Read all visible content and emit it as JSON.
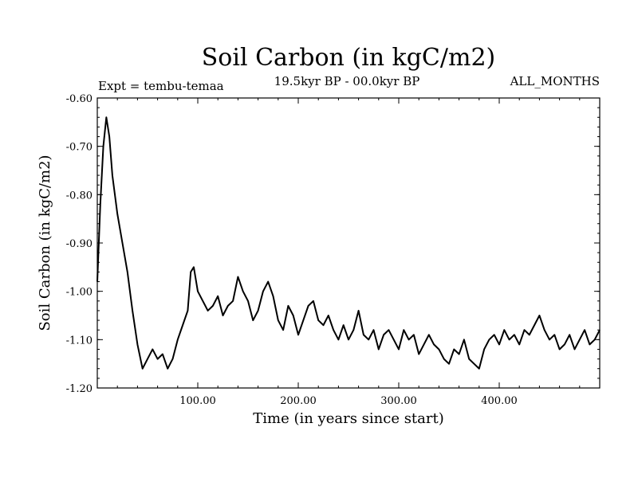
{
  "chart_data": {
    "type": "line",
    "title": "Soil Carbon (in kgC/m2)",
    "left_note": "Expt = tembu-temaa",
    "center_note": "19.5kyr BP - 00.0kyr BP",
    "right_note": "ALL_MONTHS",
    "xlabel": "Time (in years since start)",
    "ylabel": "Soil Carbon (in kgC/m2)",
    "xlim": [
      0,
      500
    ],
    "ylim": [
      -1.2,
      -0.6
    ],
    "xticks": [
      100,
      200,
      300,
      400
    ],
    "xtick_labels": [
      "100.00",
      "200.00",
      "300.00",
      "400.00"
    ],
    "yticks": [
      -0.6,
      -0.7,
      -0.8,
      -0.9,
      -1.0,
      -1.1,
      -1.2
    ],
    "ytick_labels": [
      "-0.60",
      "-0.70",
      "-0.80",
      "-0.90",
      "-1.00",
      "-1.10",
      "-1.20"
    ],
    "series": [
      {
        "name": "Soil Carbon",
        "x": [
          0,
          3,
          6,
          9,
          12,
          15,
          20,
          25,
          30,
          35,
          40,
          45,
          50,
          55,
          60,
          65,
          70,
          75,
          80,
          85,
          90,
          93,
          96,
          100,
          105,
          110,
          115,
          120,
          125,
          130,
          135,
          140,
          145,
          150,
          155,
          160,
          165,
          170,
          175,
          180,
          185,
          190,
          195,
          200,
          205,
          210,
          215,
          220,
          225,
          230,
          235,
          240,
          245,
          250,
          255,
          260,
          265,
          270,
          275,
          280,
          285,
          290,
          295,
          300,
          305,
          310,
          315,
          320,
          325,
          330,
          335,
          340,
          345,
          350,
          355,
          360,
          365,
          370,
          375,
          380,
          385,
          390,
          395,
          400,
          405,
          410,
          415,
          420,
          425,
          430,
          435,
          440,
          445,
          450,
          455,
          460,
          465,
          470,
          475,
          480,
          485,
          490,
          495,
          500
        ],
        "y": [
          -0.98,
          -0.82,
          -0.7,
          -0.64,
          -0.68,
          -0.76,
          -0.84,
          -0.9,
          -0.96,
          -1.04,
          -1.11,
          -1.16,
          -1.14,
          -1.12,
          -1.14,
          -1.13,
          -1.16,
          -1.14,
          -1.1,
          -1.07,
          -1.04,
          -0.96,
          -0.95,
          -1.0,
          -1.02,
          -1.04,
          -1.03,
          -1.01,
          -1.05,
          -1.03,
          -1.02,
          -0.97,
          -1.0,
          -1.02,
          -1.06,
          -1.04,
          -1.0,
          -0.98,
          -1.01,
          -1.06,
          -1.08,
          -1.03,
          -1.05,
          -1.09,
          -1.06,
          -1.03,
          -1.02,
          -1.06,
          -1.07,
          -1.05,
          -1.08,
          -1.1,
          -1.07,
          -1.1,
          -1.08,
          -1.04,
          -1.09,
          -1.1,
          -1.08,
          -1.12,
          -1.09,
          -1.08,
          -1.1,
          -1.12,
          -1.08,
          -1.1,
          -1.09,
          -1.13,
          -1.11,
          -1.09,
          -1.11,
          -1.12,
          -1.14,
          -1.15,
          -1.12,
          -1.13,
          -1.1,
          -1.14,
          -1.15,
          -1.16,
          -1.12,
          -1.1,
          -1.09,
          -1.11,
          -1.08,
          -1.1,
          -1.09,
          -1.11,
          -1.08,
          -1.09,
          -1.07,
          -1.05,
          -1.08,
          -1.1,
          -1.09,
          -1.12,
          -1.11,
          -1.09,
          -1.12,
          -1.1,
          -1.08,
          -1.11,
          -1.1,
          -1.08
        ]
      }
    ]
  }
}
